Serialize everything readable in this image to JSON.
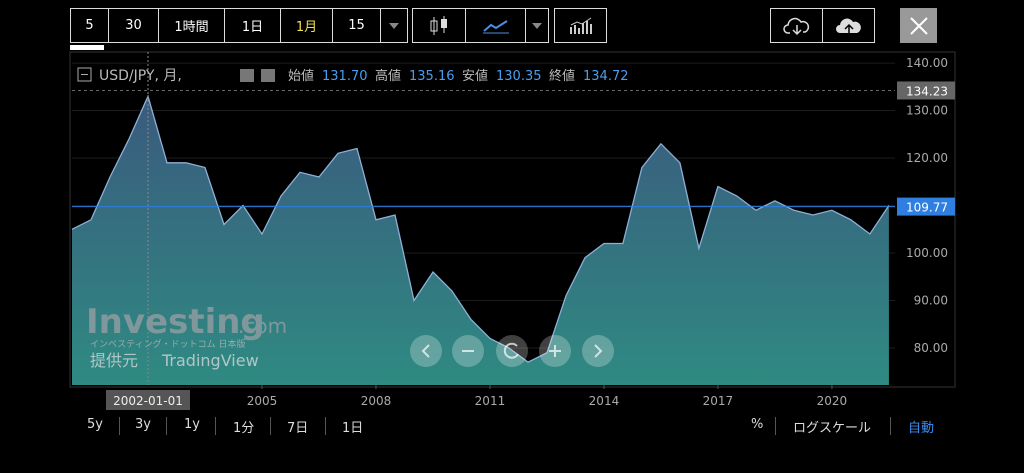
{
  "toolbar": {
    "intervals": [
      "5",
      "30",
      "1時間",
      "1日",
      "1月",
      "15"
    ]
  },
  "chart_data": {
    "type": "area",
    "symbol": "USD/JPY, 月,",
    "ohlc": [
      {
        "label": "始値",
        "value": "131.70"
      },
      {
        "label": "高値",
        "value": "135.16"
      },
      {
        "label": "安値",
        "value": "130.35"
      },
      {
        "label": "終値",
        "value": "134.72"
      }
    ],
    "x": [
      2000.0,
      2000.5,
      2001.0,
      2001.5,
      2002.0,
      2002.5,
      2003.0,
      2003.5,
      2004.0,
      2004.5,
      2005.0,
      2005.5,
      2006.0,
      2006.5,
      2007.0,
      2007.5,
      2008.0,
      2008.5,
      2009.0,
      2009.5,
      2010.0,
      2010.5,
      2011.0,
      2011.5,
      2012.0,
      2012.5,
      2013.0,
      2013.5,
      2014.0,
      2014.5,
      2015.0,
      2015.5,
      2016.0,
      2016.5,
      2017.0,
      2017.5,
      2018.0,
      2018.5,
      2019.0,
      2019.5,
      2020.0,
      2020.5,
      2021.0,
      2021.5
    ],
    "series": [
      {
        "name": "USD/JPY",
        "color": "#8fb0d6",
        "values": [
          105,
          107,
          116,
          124,
          133,
          119,
          119,
          118,
          106,
          110,
          104,
          112,
          117,
          116,
          121,
          122,
          107,
          108,
          90,
          96,
          92,
          86,
          82,
          80,
          77,
          79,
          91,
          99,
          102,
          102,
          118,
          123,
          119,
          101,
          114,
          112,
          109,
          111,
          109,
          108,
          109,
          107,
          104,
          110
        ]
      }
    ],
    "xlim": [
      2000,
      2021.66
    ],
    "ylim": [
      72.2,
      141.7
    ],
    "xticks": [
      {
        "value": 2002,
        "label": "2002-01-01"
      },
      2005,
      2008,
      2011,
      2014,
      2017,
      2020
    ],
    "yticks": [
      {
        "value": 80,
        "label": "80.00"
      },
      {
        "value": 90,
        "label": "90.00"
      },
      {
        "value": 100,
        "label": "100.00"
      },
      {
        "value": 110,
        "label": "110.00"
      },
      {
        "value": 120,
        "label": "120.00"
      },
      {
        "value": 130,
        "label": "130.00"
      },
      {
        "value": 140,
        "label": "140.00"
      }
    ],
    "markers": [
      {
        "value": 134.23,
        "color": "#666666"
      },
      {
        "value": 109.77,
        "color": "#2f7fe0"
      }
    ]
  },
  "watermark": {
    "brand": "Investing",
    "domain": ".com",
    "subtitle": "インベスティング・ドットコム 日本版",
    "provider": "提供元",
    "source": "TradingView"
  },
  "footer": {
    "ranges": [
      "5y",
      "3y",
      "1y",
      "1分",
      "7日",
      "1日"
    ],
    "percent": "%",
    "log": "ログスケール",
    "auto": "自動"
  }
}
